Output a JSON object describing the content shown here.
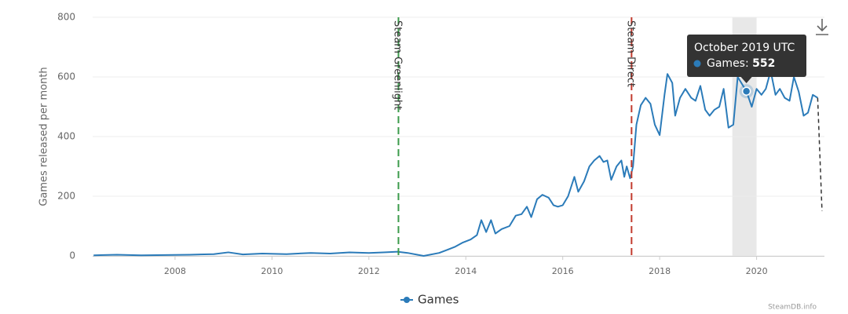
{
  "chart_data": {
    "type": "line",
    "y_label": "Games released per month",
    "xlim": [
      2006.3,
      2021.4
    ],
    "xticks": [
      2008,
      2010,
      2012,
      2014,
      2016,
      2018,
      2020
    ],
    "ylim": [
      0,
      800
    ],
    "yticks": [
      0,
      200,
      400,
      600,
      800
    ],
    "grid": true,
    "dashed_last_segment": true,
    "series": [
      {
        "name": "Games",
        "color": "#2b7bb9",
        "x": [
          2006.32,
          2006.8,
          2007.3,
          2007.8,
          2008.3,
          2008.8,
          2009.1,
          2009.4,
          2009.8,
          2010.3,
          2010.8,
          2011.2,
          2011.6,
          2012.0,
          2012.3,
          2012.6,
          2012.8,
          2013.13,
          2013.45,
          2013.61,
          2013.77,
          2013.94,
          2014.1,
          2014.23,
          2014.32,
          2014.42,
          2014.52,
          2014.61,
          2014.74,
          2014.9,
          2015.03,
          2015.15,
          2015.26,
          2015.35,
          2015.47,
          2015.58,
          2015.71,
          2015.81,
          2015.9,
          2016.0,
          2016.11,
          2016.24,
          2016.32,
          2016.44,
          2016.55,
          2016.65,
          2016.76,
          2016.84,
          2016.92,
          2017.0,
          2017.11,
          2017.21,
          2017.27,
          2017.32,
          2017.39,
          2017.45,
          2017.52,
          2017.61,
          2017.71,
          2017.81,
          2017.9,
          2018.0,
          2018.1,
          2018.16,
          2018.26,
          2018.32,
          2018.42,
          2018.53,
          2018.65,
          2018.74,
          2018.84,
          2018.94,
          2019.03,
          2019.13,
          2019.23,
          2019.32,
          2019.42,
          2019.52,
          2019.61,
          2019.79,
          2019.9,
          2020.0,
          2020.1,
          2020.19,
          2020.29,
          2020.39,
          2020.48,
          2020.58,
          2020.68,
          2020.77,
          2020.87,
          2020.97,
          2021.06,
          2021.16,
          2021.26,
          2021.35
        ],
        "values": [
          2,
          4,
          2,
          3,
          4,
          6,
          12,
          5,
          8,
          6,
          10,
          8,
          12,
          10,
          12,
          14,
          10,
          0,
          10,
          20,
          30,
          45,
          55,
          70,
          120,
          80,
          120,
          75,
          90,
          100,
          135,
          140,
          165,
          130,
          190,
          205,
          195,
          170,
          165,
          170,
          200,
          265,
          215,
          250,
          300,
          320,
          335,
          315,
          320,
          255,
          300,
          320,
          265,
          300,
          260,
          300,
          440,
          505,
          530,
          510,
          440,
          405,
          540,
          610,
          580,
          470,
          530,
          560,
          530,
          520,
          570,
          490,
          470,
          490,
          500,
          560,
          430,
          440,
          600,
          552,
          500,
          560,
          540,
          560,
          620,
          540,
          560,
          530,
          520,
          600,
          550,
          470,
          480,
          540,
          530,
          150
        ]
      }
    ],
    "annotations": [
      {
        "label": "Steam Greenlight",
        "x": 2012.61,
        "color": "#3a9a4a"
      },
      {
        "label": "Steam Direct",
        "x": 2017.42,
        "color": "#c23b2e"
      }
    ],
    "tooltip": {
      "title": "October 2019 UTC",
      "label": "Games:",
      "value": 552,
      "x": 2019.79,
      "band": [
        2019.5,
        2020.0
      ]
    },
    "credit": "SteamDB.info"
  }
}
